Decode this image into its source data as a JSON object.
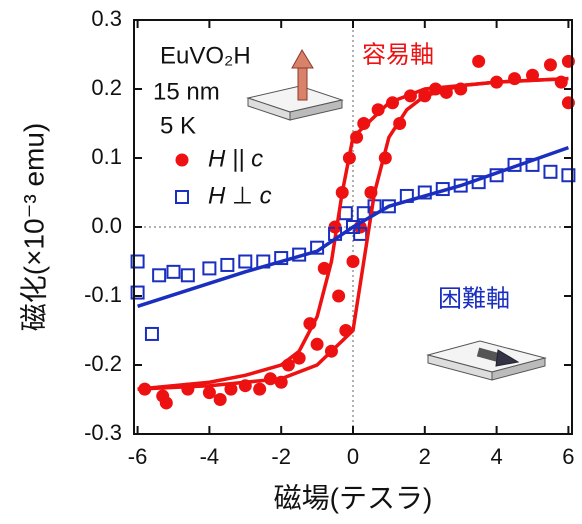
{
  "chart_data": {
    "type": "scatter",
    "xlabel": "磁場(テスラ)",
    "ylabel": "磁化(×10⁻³ emu)",
    "annotations": [
      "EuVO₂H",
      "15 nm",
      "5 K",
      "容易軸",
      "困難軸"
    ],
    "xlim": [
      -6.1,
      6.1
    ],
    "ylim": [
      -0.3,
      0.3
    ],
    "xticks": [
      -6,
      -4,
      -2,
      0,
      2,
      4,
      6
    ],
    "yticks": [
      0.3,
      0.2,
      0.1,
      {
        "value": 0,
        "label": "0.0"
      },
      -0.1,
      -0.2,
      -0.3
    ],
    "series": [
      {
        "name": "H || c",
        "color": "#ee1111",
        "mode": "markers",
        "marker": "circle",
        "x": [
          -5.8,
          -5.3,
          -5.2,
          -4.6,
          -4,
          -3.7,
          -3.4,
          -3,
          -2.6,
          -2.3,
          -2,
          -1.8,
          -1.5,
          -1.2,
          -1,
          -0.8,
          -0.6,
          -0.5,
          -0.4,
          -0.3,
          -0.2,
          -0.1,
          0,
          0.1,
          0.2,
          0.3,
          0.5,
          0.7,
          0.9,
          1.1,
          1.3,
          1.6,
          2,
          2.3,
          2.6,
          3,
          3.5,
          4,
          4.5,
          5,
          5.5,
          5.8,
          6,
          6
        ],
        "values": [
          -0.235,
          -0.245,
          -0.255,
          -0.235,
          -0.24,
          -0.25,
          -0.235,
          -0.23,
          -0.235,
          -0.22,
          -0.225,
          -0.2,
          -0.19,
          -0.14,
          -0.17,
          -0.06,
          -0.18,
          0,
          -0.1,
          0.05,
          -0.15,
          0.1,
          -0.05,
          0.13,
          0,
          0.15,
          0.05,
          0.17,
          0.1,
          0.18,
          0.15,
          0.19,
          0.19,
          0.2,
          0.195,
          0.2,
          0.24,
          0.21,
          0.215,
          0.22,
          0.235,
          0.21,
          0.18,
          0.24
        ]
      },
      {
        "name": "H ⊥ c",
        "color": "#1a2fbf",
        "mode": "markers",
        "marker": "square",
        "x": [
          -6,
          -6,
          -5.6,
          -5.4,
          -5,
          -4.6,
          -4,
          -3.5,
          -3,
          -2.5,
          -2,
          -1.5,
          -1,
          -0.5,
          0,
          0.3,
          0.6,
          1,
          1.5,
          2,
          2.5,
          3,
          3.5,
          4,
          4.5,
          5,
          5.5,
          6,
          -0.2,
          0.2
        ],
        "values": [
          -0.05,
          -0.095,
          -0.155,
          -0.07,
          -0.065,
          -0.07,
          -0.06,
          -0.055,
          -0.05,
          -0.05,
          -0.045,
          -0.04,
          -0.03,
          -0.01,
          0,
          0.02,
          0.03,
          0.03,
          0.045,
          0.05,
          0.055,
          0.06,
          0.065,
          0.075,
          0.09,
          0.09,
          0.08,
          0.075,
          0.02,
          -0.01
        ]
      },
      {
        "color": "#ee1111",
        "mode": "line",
        "x": [
          -6,
          -4,
          -2,
          -1,
          0,
          0.3,
          0.6,
          1,
          1.5,
          2,
          3,
          4,
          6
        ],
        "values": [
          -0.235,
          -0.23,
          -0.22,
          -0.2,
          -0.15,
          -0.05,
          0.05,
          0.13,
          0.17,
          0.19,
          0.205,
          0.21,
          0.215
        ]
      },
      {
        "color": "#ee1111",
        "mode": "line",
        "x": [
          6,
          4,
          2,
          1,
          0,
          -0.3,
          -0.6,
          -1,
          -1.5,
          -2,
          -3,
          -4,
          -6
        ],
        "values": [
          0.215,
          0.21,
          0.2,
          0.18,
          0.13,
          0.05,
          -0.05,
          -0.13,
          -0.18,
          -0.2,
          -0.215,
          -0.225,
          -0.235
        ]
      },
      {
        "color": "#1a2fbf",
        "mode": "line",
        "x": [
          -6,
          -3,
          -1,
          0,
          1,
          3,
          6
        ],
        "values": [
          -0.115,
          -0.065,
          -0.035,
          0,
          0.03,
          0.06,
          0.115
        ]
      }
    ]
  }
}
